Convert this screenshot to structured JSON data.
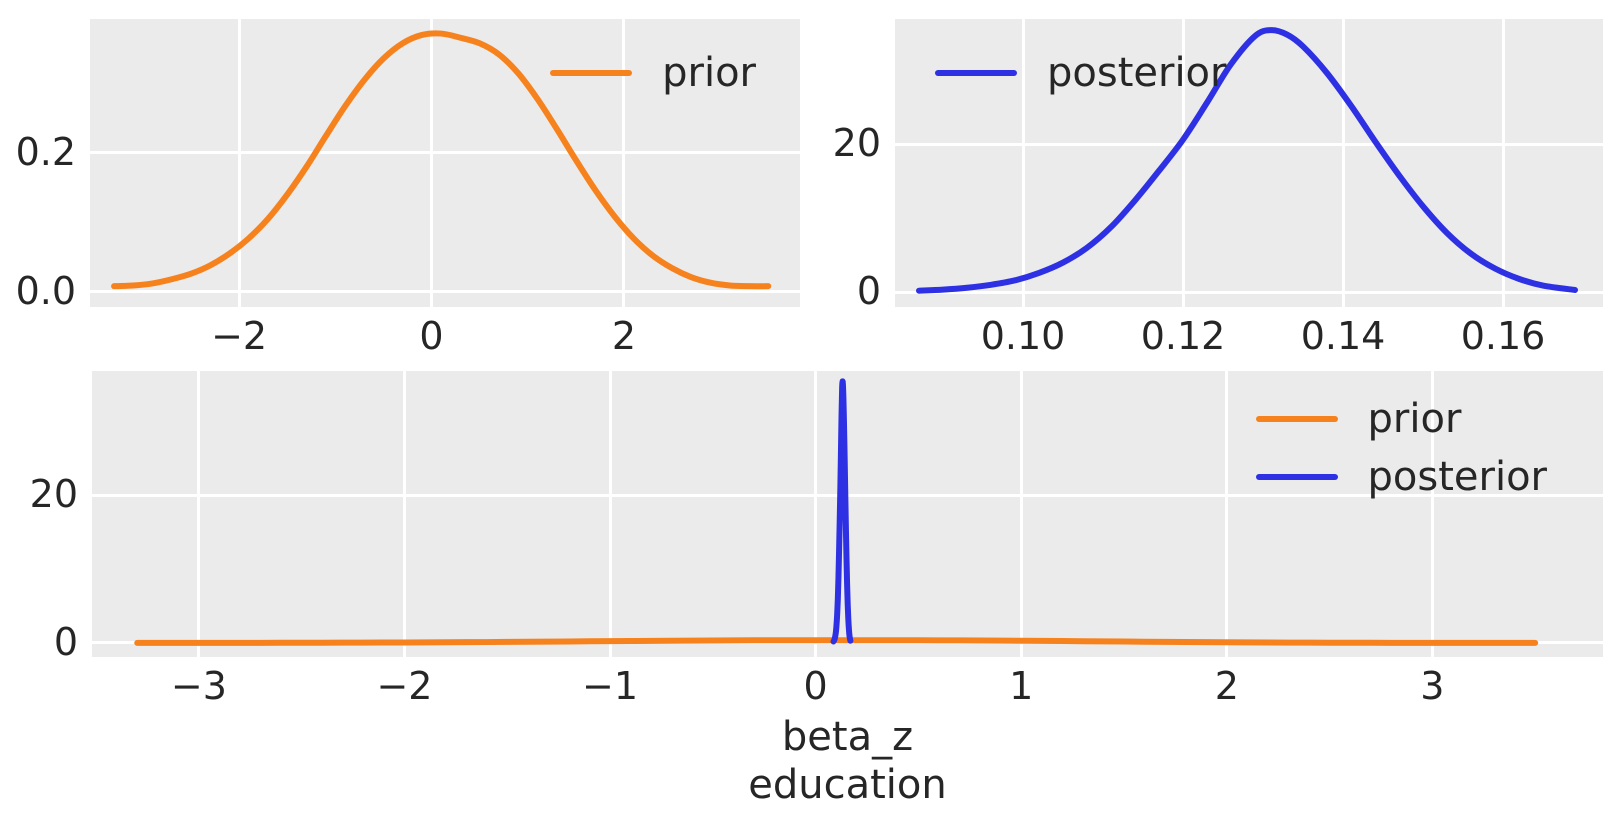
{
  "figure": {
    "background": "#ffffff",
    "panel_background": "#ebebeb",
    "gridline_color": "#ffffff",
    "tick_text_color": "#262626",
    "prior_color": "#f6821e",
    "posterior_color": "#2d31e3"
  },
  "chart_data": [
    {
      "id": "prior-marginal",
      "type": "line",
      "title": "",
      "xlabel": "",
      "ylabel": "",
      "grid": true,
      "legend_position": "top-right",
      "xlim": [
        -3.55,
        3.83
      ],
      "ylim": [
        -0.022,
        0.393
      ],
      "xticks": [
        {
          "v": -2,
          "label": "−2"
        },
        {
          "v": 0,
          "label": "0"
        },
        {
          "v": 2,
          "label": "2"
        }
      ],
      "yticks": [
        {
          "v": 0.0,
          "label": "0.0"
        },
        {
          "v": 0.2,
          "label": "0.2"
        }
      ],
      "series": [
        {
          "name": "prior",
          "color": "#f6821e",
          "x": [
            -3.3,
            -3.1,
            -2.9,
            -2.7,
            -2.5,
            -2.3,
            -2.1,
            -1.9,
            -1.7,
            -1.5,
            -1.3,
            -1.1,
            -0.9,
            -0.7,
            -0.5,
            -0.3,
            -0.1,
            0.1,
            0.3,
            0.5,
            0.7,
            0.9,
            1.1,
            1.3,
            1.5,
            1.7,
            1.9,
            2.1,
            2.3,
            2.5,
            2.7,
            2.9,
            3.1,
            3.3,
            3.5
          ],
          "y": [
            0.008,
            0.009,
            0.012,
            0.018,
            0.026,
            0.038,
            0.055,
            0.077,
            0.105,
            0.14,
            0.18,
            0.224,
            0.267,
            0.305,
            0.336,
            0.358,
            0.37,
            0.372,
            0.366,
            0.358,
            0.342,
            0.315,
            0.278,
            0.235,
            0.19,
            0.147,
            0.109,
            0.077,
            0.052,
            0.034,
            0.021,
            0.013,
            0.009,
            0.008,
            0.008
          ]
        }
      ]
    },
    {
      "id": "posterior-marginal",
      "type": "line",
      "title": "",
      "xlabel": "",
      "ylabel": "",
      "grid": true,
      "legend_position": "top-left",
      "xlim": [
        0.084,
        0.1725
      ],
      "ylim": [
        -2.0,
        36.9
      ],
      "xticks": [
        {
          "v": 0.1,
          "label": "0.10"
        },
        {
          "v": 0.12,
          "label": "0.12"
        },
        {
          "v": 0.14,
          "label": "0.14"
        },
        {
          "v": 0.16,
          "label": "0.16"
        }
      ],
      "yticks": [
        {
          "v": 0,
          "label": "0"
        },
        {
          "v": 20,
          "label": "20"
        }
      ],
      "series": [
        {
          "name": "posterior",
          "color": "#2d31e3",
          "x": [
            0.087,
            0.09,
            0.093,
            0.096,
            0.099,
            0.102,
            0.105,
            0.108,
            0.111,
            0.114,
            0.117,
            0.12,
            0.123,
            0.126,
            0.129,
            0.131,
            0.133,
            0.135,
            0.138,
            0.141,
            0.144,
            0.147,
            0.15,
            0.153,
            0.156,
            0.159,
            0.162,
            0.165,
            0.169
          ],
          "y": [
            0.2,
            0.35,
            0.6,
            1.0,
            1.6,
            2.6,
            4.0,
            6.0,
            8.8,
            12.4,
            16.4,
            20.6,
            25.6,
            30.8,
            34.6,
            35.4,
            34.8,
            33.2,
            29.6,
            25.2,
            20.4,
            15.8,
            11.6,
            8.0,
            5.2,
            3.2,
            1.8,
            0.9,
            0.3
          ]
        }
      ]
    },
    {
      "id": "prior-vs-posterior",
      "type": "line",
      "title": "",
      "xlabel": "beta_z education",
      "xlabel_lines": [
        "beta_z",
        "education"
      ],
      "ylabel": "",
      "grid": true,
      "legend_position": "top-right",
      "xlim": [
        -3.52,
        3.83
      ],
      "ylim": [
        -1.9,
        36.8
      ],
      "xticks": [
        {
          "v": -3,
          "label": "−3"
        },
        {
          "v": -2,
          "label": "−2"
        },
        {
          "v": -1,
          "label": "−1"
        },
        {
          "v": 0,
          "label": "0"
        },
        {
          "v": 1,
          "label": "1"
        },
        {
          "v": 2,
          "label": "2"
        },
        {
          "v": 3,
          "label": "3"
        }
      ],
      "yticks": [
        {
          "v": 0,
          "label": "0"
        },
        {
          "v": 20,
          "label": "20"
        }
      ],
      "series": [
        {
          "name": "prior",
          "color": "#f6821e",
          "x": [
            -3.3,
            -3.1,
            -2.9,
            -2.7,
            -2.5,
            -2.3,
            -2.1,
            -1.9,
            -1.7,
            -1.5,
            -1.3,
            -1.1,
            -0.9,
            -0.7,
            -0.5,
            -0.3,
            -0.1,
            0.1,
            0.3,
            0.5,
            0.7,
            0.9,
            1.1,
            1.3,
            1.5,
            1.7,
            1.9,
            2.1,
            2.3,
            2.5,
            2.7,
            2.9,
            3.1,
            3.3,
            3.5
          ],
          "y": [
            0.008,
            0.009,
            0.012,
            0.018,
            0.026,
            0.038,
            0.055,
            0.077,
            0.105,
            0.14,
            0.18,
            0.224,
            0.267,
            0.305,
            0.336,
            0.358,
            0.37,
            0.372,
            0.366,
            0.358,
            0.342,
            0.315,
            0.278,
            0.235,
            0.19,
            0.147,
            0.109,
            0.077,
            0.052,
            0.034,
            0.021,
            0.013,
            0.009,
            0.008,
            0.008
          ]
        },
        {
          "name": "posterior",
          "color": "#2d31e3",
          "x": [
            0.087,
            0.09,
            0.093,
            0.096,
            0.099,
            0.102,
            0.105,
            0.108,
            0.111,
            0.114,
            0.117,
            0.12,
            0.123,
            0.126,
            0.129,
            0.131,
            0.133,
            0.135,
            0.138,
            0.141,
            0.144,
            0.147,
            0.15,
            0.153,
            0.156,
            0.159,
            0.162,
            0.165,
            0.169
          ],
          "y": [
            0.2,
            0.35,
            0.6,
            1.0,
            1.6,
            2.6,
            4.0,
            6.0,
            8.8,
            12.4,
            16.4,
            20.6,
            25.6,
            30.8,
            34.6,
            35.4,
            34.8,
            33.2,
            29.6,
            25.2,
            20.4,
            15.8,
            11.6,
            8.0,
            5.2,
            3.2,
            1.8,
            0.9,
            0.3
          ]
        }
      ]
    }
  ]
}
